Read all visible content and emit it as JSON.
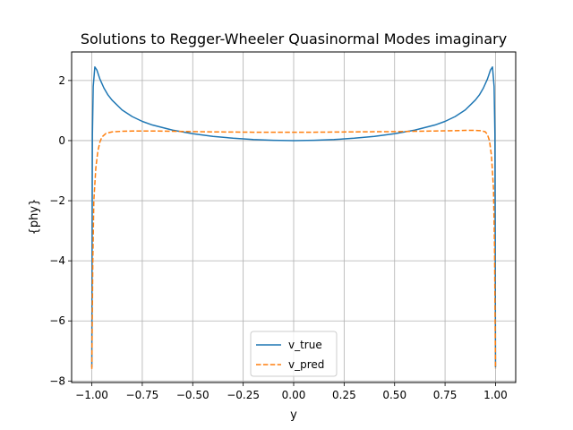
{
  "chart_data": {
    "type": "line",
    "title": "Solutions to Regger-Wheeler Quasinormal Modes imaginary",
    "xlabel": "y",
    "ylabel": "{phy}",
    "xlim": [
      -1.1,
      1.1
    ],
    "ylim": [
      -8.05,
      2.95
    ],
    "grid": true,
    "legend_position": "lower center",
    "x_ticks": [
      -1.0,
      -0.75,
      -0.5,
      -0.25,
      0.0,
      0.25,
      0.5,
      0.75,
      1.0
    ],
    "x_tick_labels": [
      "−1.00",
      "−0.75",
      "−0.50",
      "−0.25",
      "0.00",
      "0.25",
      "0.50",
      "0.75",
      "1.00"
    ],
    "y_ticks": [
      2,
      0,
      -2,
      -4,
      -6,
      -8
    ],
    "y_tick_labels": [
      "2",
      "0",
      "−2",
      "−4",
      "−6",
      "−8"
    ],
    "series": [
      {
        "name": "v_true",
        "color": "#1f77b4",
        "style": "solid",
        "points": [
          [
            -1.0,
            -7.55
          ],
          [
            -0.997,
            0.2
          ],
          [
            -0.993,
            1.8
          ],
          [
            -0.985,
            2.45
          ],
          [
            -0.975,
            2.35
          ],
          [
            -0.96,
            2.05
          ],
          [
            -0.94,
            1.75
          ],
          [
            -0.92,
            1.52
          ],
          [
            -0.9,
            1.35
          ],
          [
            -0.85,
            1.02
          ],
          [
            -0.8,
            0.8
          ],
          [
            -0.75,
            0.64
          ],
          [
            -0.7,
            0.52
          ],
          [
            -0.6,
            0.35
          ],
          [
            -0.5,
            0.23
          ],
          [
            -0.4,
            0.14
          ],
          [
            -0.3,
            0.08
          ],
          [
            -0.2,
            0.035
          ],
          [
            -0.1,
            0.01
          ],
          [
            0.0,
            0.0
          ],
          [
            0.1,
            0.01
          ],
          [
            0.2,
            0.035
          ],
          [
            0.3,
            0.08
          ],
          [
            0.4,
            0.14
          ],
          [
            0.5,
            0.23
          ],
          [
            0.6,
            0.35
          ],
          [
            0.7,
            0.52
          ],
          [
            0.75,
            0.64
          ],
          [
            0.8,
            0.8
          ],
          [
            0.85,
            1.02
          ],
          [
            0.9,
            1.35
          ],
          [
            0.92,
            1.52
          ],
          [
            0.94,
            1.75
          ],
          [
            0.96,
            2.05
          ],
          [
            0.975,
            2.35
          ],
          [
            0.985,
            2.45
          ],
          [
            0.993,
            1.8
          ],
          [
            0.997,
            0.2
          ],
          [
            1.0,
            -7.55
          ]
        ]
      },
      {
        "name": "v_pred",
        "color": "#ff7f0e",
        "style": "dashed",
        "points": [
          [
            -1.0,
            -7.6
          ],
          [
            -0.995,
            -4.0
          ],
          [
            -0.99,
            -2.0
          ],
          [
            -0.98,
            -0.9
          ],
          [
            -0.97,
            -0.35
          ],
          [
            -0.96,
            -0.05
          ],
          [
            -0.95,
            0.12
          ],
          [
            -0.93,
            0.24
          ],
          [
            -0.9,
            0.29
          ],
          [
            -0.85,
            0.31
          ],
          [
            -0.8,
            0.32
          ],
          [
            -0.7,
            0.32
          ],
          [
            -0.6,
            0.31
          ],
          [
            -0.5,
            0.3
          ],
          [
            -0.4,
            0.29
          ],
          [
            -0.3,
            0.285
          ],
          [
            -0.2,
            0.28
          ],
          [
            -0.1,
            0.28
          ],
          [
            0.0,
            0.28
          ],
          [
            0.1,
            0.28
          ],
          [
            0.2,
            0.285
          ],
          [
            0.3,
            0.29
          ],
          [
            0.4,
            0.295
          ],
          [
            0.5,
            0.3
          ],
          [
            0.6,
            0.31
          ],
          [
            0.7,
            0.32
          ],
          [
            0.8,
            0.33
          ],
          [
            0.85,
            0.34
          ],
          [
            0.9,
            0.34
          ],
          [
            0.93,
            0.33
          ],
          [
            0.95,
            0.29
          ],
          [
            0.96,
            0.2
          ],
          [
            0.97,
            0.0
          ],
          [
            0.98,
            -0.5
          ],
          [
            0.99,
            -1.6
          ],
          [
            0.995,
            -3.5
          ],
          [
            1.0,
            -7.6
          ]
        ]
      }
    ]
  }
}
